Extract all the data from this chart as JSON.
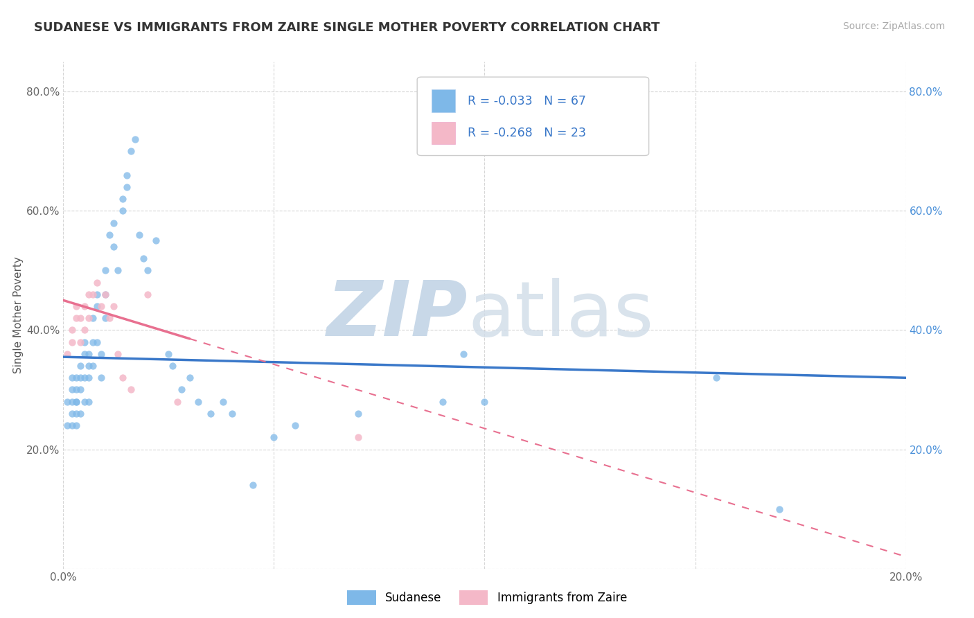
{
  "title": "SUDANESE VS IMMIGRANTS FROM ZAIRE SINGLE MOTHER POVERTY CORRELATION CHART",
  "source": "Source: ZipAtlas.com",
  "ylabel": "Single Mother Poverty",
  "legend1_label": "Sudanese",
  "legend2_label": "Immigrants from Zaire",
  "r1": -0.033,
  "n1": 67,
  "r2": -0.268,
  "n2": 23,
  "xlim": [
    0.0,
    0.2
  ],
  "ylim": [
    0.0,
    0.85
  ],
  "xticks": [
    0.0,
    0.05,
    0.1,
    0.15,
    0.2
  ],
  "yticks": [
    0.0,
    0.2,
    0.4,
    0.6,
    0.8
  ],
  "xticklabels": [
    "0.0%",
    "",
    "",
    "",
    "20.0%"
  ],
  "yticklabels_left": [
    "",
    "20.0%",
    "40.0%",
    "60.0%",
    "80.0%"
  ],
  "yticklabels_right": [
    "",
    "20.0%",
    "40.0%",
    "60.0%",
    "80.0%"
  ],
  "color_sudanese": "#7eb8e8",
  "color_zaire": "#f4b8c8",
  "trendline_sudanese_color": "#3a78c9",
  "trendline_zaire_color": "#e87090",
  "sudanese_x": [
    0.001,
    0.001,
    0.002,
    0.002,
    0.002,
    0.002,
    0.002,
    0.003,
    0.003,
    0.003,
    0.003,
    0.003,
    0.003,
    0.004,
    0.004,
    0.004,
    0.004,
    0.005,
    0.005,
    0.005,
    0.005,
    0.006,
    0.006,
    0.006,
    0.006,
    0.007,
    0.007,
    0.007,
    0.008,
    0.008,
    0.008,
    0.009,
    0.009,
    0.01,
    0.01,
    0.01,
    0.011,
    0.012,
    0.012,
    0.013,
    0.014,
    0.014,
    0.015,
    0.015,
    0.016,
    0.017,
    0.018,
    0.019,
    0.02,
    0.022,
    0.025,
    0.026,
    0.028,
    0.03,
    0.032,
    0.035,
    0.038,
    0.04,
    0.045,
    0.05,
    0.055,
    0.07,
    0.09,
    0.095,
    0.1,
    0.155,
    0.17
  ],
  "sudanese_y": [
    0.28,
    0.24,
    0.3,
    0.28,
    0.26,
    0.32,
    0.24,
    0.3,
    0.28,
    0.32,
    0.26,
    0.24,
    0.28,
    0.32,
    0.34,
    0.3,
    0.26,
    0.36,
    0.38,
    0.32,
    0.28,
    0.36,
    0.34,
    0.32,
    0.28,
    0.42,
    0.38,
    0.34,
    0.46,
    0.44,
    0.38,
    0.36,
    0.32,
    0.5,
    0.46,
    0.42,
    0.56,
    0.58,
    0.54,
    0.5,
    0.6,
    0.62,
    0.64,
    0.66,
    0.7,
    0.72,
    0.56,
    0.52,
    0.5,
    0.55,
    0.36,
    0.34,
    0.3,
    0.32,
    0.28,
    0.26,
    0.28,
    0.26,
    0.14,
    0.22,
    0.24,
    0.26,
    0.28,
    0.36,
    0.28,
    0.32,
    0.1
  ],
  "zaire_x": [
    0.001,
    0.002,
    0.002,
    0.003,
    0.003,
    0.004,
    0.004,
    0.005,
    0.005,
    0.006,
    0.006,
    0.007,
    0.008,
    0.009,
    0.01,
    0.011,
    0.012,
    0.013,
    0.014,
    0.016,
    0.02,
    0.027,
    0.07
  ],
  "zaire_y": [
    0.36,
    0.38,
    0.4,
    0.42,
    0.44,
    0.38,
    0.42,
    0.44,
    0.4,
    0.46,
    0.42,
    0.46,
    0.48,
    0.44,
    0.46,
    0.42,
    0.44,
    0.36,
    0.32,
    0.3,
    0.46,
    0.28,
    0.22
  ],
  "trendline_s_x0": 0.0,
  "trendline_s_y0": 0.355,
  "trendline_s_x1": 0.2,
  "trendline_s_y1": 0.32,
  "trendline_z_x0": 0.0,
  "trendline_z_y0": 0.45,
  "trendline_z_x1": 0.2,
  "trendline_z_y1": 0.02
}
